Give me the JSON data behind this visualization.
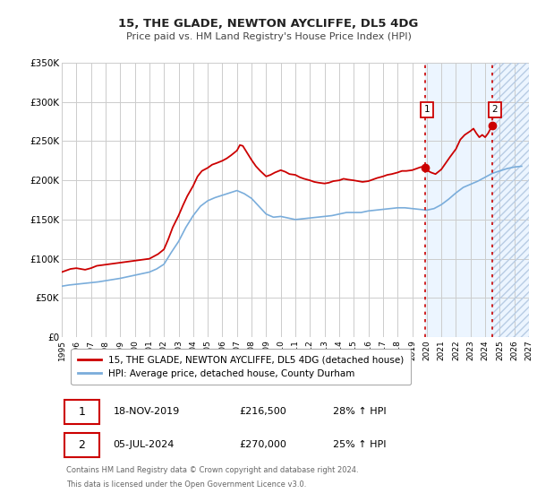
{
  "title": "15, THE GLADE, NEWTON AYCLIFFE, DL5 4DG",
  "subtitle": "Price paid vs. HM Land Registry's House Price Index (HPI)",
  "legend_line1": "15, THE GLADE, NEWTON AYCLIFFE, DL5 4DG (detached house)",
  "legend_line2": "HPI: Average price, detached house, County Durham",
  "annotation1_label": "1",
  "annotation1_date": "18-NOV-2019",
  "annotation1_price": "£216,500",
  "annotation1_hpi": "28% ↑ HPI",
  "annotation1_year": 2019.88,
  "annotation1_value": 216500,
  "annotation2_label": "2",
  "annotation2_date": "05-JUL-2024",
  "annotation2_price": "£270,000",
  "annotation2_hpi": "25% ↑ HPI",
  "annotation2_year": 2024.51,
  "annotation2_value": 270000,
  "footer_line1": "Contains HM Land Registry data © Crown copyright and database right 2024.",
  "footer_line2": "This data is licensed under the Open Government Licence v3.0.",
  "red_color": "#cc0000",
  "blue_color": "#7aaddb",
  "shade_color": "#ddeeff",
  "hatch_color": "#b8cce4",
  "grid_color": "#cccccc",
  "ylim": [
    0,
    350000
  ],
  "xlim_start": 1995,
  "xlim_end": 2027,
  "yticks": [
    0,
    50000,
    100000,
    150000,
    200000,
    250000,
    300000,
    350000
  ],
  "ytick_labels": [
    "£0",
    "£50K",
    "£100K",
    "£150K",
    "£200K",
    "£250K",
    "£300K",
    "£350K"
  ],
  "red_line": [
    [
      1995.0,
      83000
    ],
    [
      1995.3,
      85000
    ],
    [
      1995.6,
      87000
    ],
    [
      1996.0,
      88000
    ],
    [
      1996.3,
      87000
    ],
    [
      1996.6,
      86000
    ],
    [
      1997.0,
      88000
    ],
    [
      1997.4,
      91000
    ],
    [
      1997.8,
      92000
    ],
    [
      1998.2,
      93000
    ],
    [
      1998.6,
      94000
    ],
    [
      1999.0,
      95000
    ],
    [
      1999.4,
      96000
    ],
    [
      1999.8,
      97000
    ],
    [
      2000.2,
      98000
    ],
    [
      2000.6,
      99000
    ],
    [
      2001.0,
      100000
    ],
    [
      2001.3,
      103000
    ],
    [
      2001.6,
      106000
    ],
    [
      2002.0,
      112000
    ],
    [
      2002.3,
      125000
    ],
    [
      2002.6,
      140000
    ],
    [
      2003.0,
      155000
    ],
    [
      2003.3,
      168000
    ],
    [
      2003.6,
      180000
    ],
    [
      2004.0,
      193000
    ],
    [
      2004.3,
      205000
    ],
    [
      2004.6,
      212000
    ],
    [
      2005.0,
      216000
    ],
    [
      2005.3,
      220000
    ],
    [
      2005.6,
      222000
    ],
    [
      2006.0,
      225000
    ],
    [
      2006.3,
      228000
    ],
    [
      2006.6,
      232000
    ],
    [
      2007.0,
      238000
    ],
    [
      2007.2,
      245000
    ],
    [
      2007.4,
      244000
    ],
    [
      2007.6,
      238000
    ],
    [
      2007.8,
      232000
    ],
    [
      2008.0,
      226000
    ],
    [
      2008.3,
      218000
    ],
    [
      2008.6,
      212000
    ],
    [
      2009.0,
      205000
    ],
    [
      2009.3,
      207000
    ],
    [
      2009.6,
      210000
    ],
    [
      2010.0,
      213000
    ],
    [
      2010.3,
      211000
    ],
    [
      2010.6,
      208000
    ],
    [
      2011.0,
      207000
    ],
    [
      2011.3,
      204000
    ],
    [
      2011.6,
      202000
    ],
    [
      2012.0,
      200000
    ],
    [
      2012.3,
      198000
    ],
    [
      2012.6,
      197000
    ],
    [
      2013.0,
      196000
    ],
    [
      2013.3,
      197000
    ],
    [
      2013.6,
      199000
    ],
    [
      2014.0,
      200000
    ],
    [
      2014.3,
      202000
    ],
    [
      2014.6,
      201000
    ],
    [
      2015.0,
      200000
    ],
    [
      2015.3,
      199000
    ],
    [
      2015.6,
      198000
    ],
    [
      2016.0,
      199000
    ],
    [
      2016.3,
      201000
    ],
    [
      2016.6,
      203000
    ],
    [
      2017.0,
      205000
    ],
    [
      2017.3,
      207000
    ],
    [
      2017.6,
      208000
    ],
    [
      2018.0,
      210000
    ],
    [
      2018.3,
      212000
    ],
    [
      2018.6,
      212000
    ],
    [
      2019.0,
      213000
    ],
    [
      2019.3,
      215000
    ],
    [
      2019.6,
      217000
    ],
    [
      2019.88,
      216500
    ],
    [
      2020.0,
      213000
    ],
    [
      2020.3,
      210000
    ],
    [
      2020.6,
      208000
    ],
    [
      2021.0,
      214000
    ],
    [
      2021.3,
      222000
    ],
    [
      2021.6,
      230000
    ],
    [
      2022.0,
      240000
    ],
    [
      2022.3,
      252000
    ],
    [
      2022.6,
      258000
    ],
    [
      2023.0,
      263000
    ],
    [
      2023.2,
      266000
    ],
    [
      2023.4,
      260000
    ],
    [
      2023.6,
      255000
    ],
    [
      2023.8,
      258000
    ],
    [
      2024.0,
      255000
    ],
    [
      2024.2,
      260000
    ],
    [
      2024.4,
      267000
    ],
    [
      2024.51,
      270000
    ]
  ],
  "blue_line": [
    [
      1995.0,
      65000
    ],
    [
      1995.5,
      66500
    ],
    [
      1996.0,
      67500
    ],
    [
      1996.5,
      68500
    ],
    [
      1997.0,
      69500
    ],
    [
      1997.5,
      70500
    ],
    [
      1998.0,
      72000
    ],
    [
      1998.5,
      73500
    ],
    [
      1999.0,
      75000
    ],
    [
      1999.5,
      77000
    ],
    [
      2000.0,
      79000
    ],
    [
      2000.5,
      81000
    ],
    [
      2001.0,
      83000
    ],
    [
      2001.5,
      87000
    ],
    [
      2002.0,
      93000
    ],
    [
      2002.5,
      108000
    ],
    [
      2003.0,
      122000
    ],
    [
      2003.5,
      140000
    ],
    [
      2004.0,
      155000
    ],
    [
      2004.5,
      167000
    ],
    [
      2005.0,
      174000
    ],
    [
      2005.5,
      178000
    ],
    [
      2006.0,
      181000
    ],
    [
      2006.5,
      184000
    ],
    [
      2007.0,
      187000
    ],
    [
      2007.5,
      183000
    ],
    [
      2008.0,
      177000
    ],
    [
      2008.5,
      167000
    ],
    [
      2009.0,
      157000
    ],
    [
      2009.5,
      153000
    ],
    [
      2010.0,
      154000
    ],
    [
      2010.5,
      152000
    ],
    [
      2011.0,
      150000
    ],
    [
      2011.5,
      151000
    ],
    [
      2012.0,
      152000
    ],
    [
      2012.5,
      153000
    ],
    [
      2013.0,
      154000
    ],
    [
      2013.5,
      155000
    ],
    [
      2014.0,
      157000
    ],
    [
      2014.5,
      159000
    ],
    [
      2015.0,
      159000
    ],
    [
      2015.5,
      159000
    ],
    [
      2016.0,
      161000
    ],
    [
      2016.5,
      162000
    ],
    [
      2017.0,
      163000
    ],
    [
      2017.5,
      164000
    ],
    [
      2018.0,
      165000
    ],
    [
      2018.5,
      165000
    ],
    [
      2019.0,
      164000
    ],
    [
      2019.5,
      163000
    ],
    [
      2020.0,
      162000
    ],
    [
      2020.5,
      164000
    ],
    [
      2021.0,
      169000
    ],
    [
      2021.5,
      176000
    ],
    [
      2022.0,
      184000
    ],
    [
      2022.5,
      191000
    ],
    [
      2023.0,
      195000
    ],
    [
      2023.5,
      199000
    ],
    [
      2024.0,
      204000
    ],
    [
      2024.5,
      209000
    ],
    [
      2025.0,
      212000
    ],
    [
      2025.5,
      215000
    ],
    [
      2026.0,
      217000
    ],
    [
      2026.5,
      218000
    ]
  ]
}
